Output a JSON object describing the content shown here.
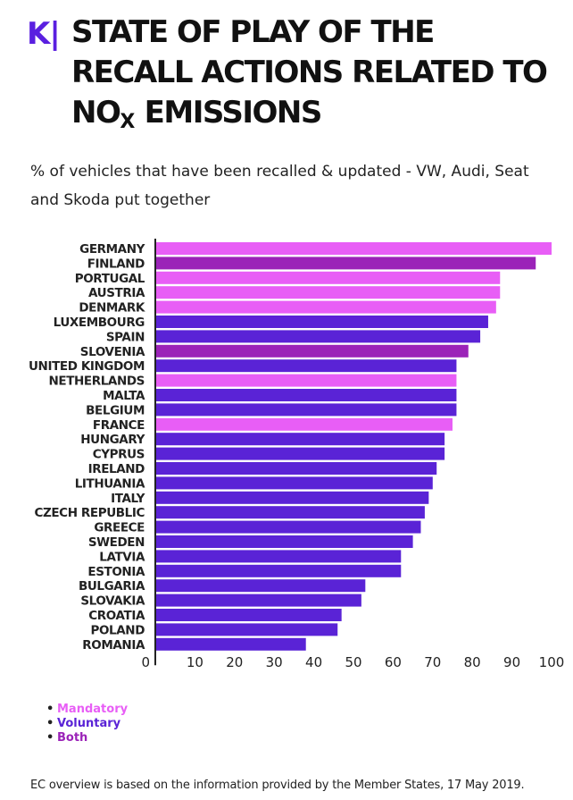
{
  "header": {
    "logo": "K|",
    "title_main": "STATE OF PLAY OF THE RECALL ACTIONS RELATED TO NO",
    "title_sub": "X",
    "title_end": " EMISSIONS",
    "subtitle": "% of vehicles that have been recalled & updated - VW, Audi, Seat and Skoda put together"
  },
  "colors": {
    "Mandatory": "#e85ef6",
    "Voluntary": "#5a23d6",
    "Both": "#9b23b8",
    "axis": "#222222"
  },
  "chart_data": {
    "type": "bar",
    "orientation": "horizontal",
    "title": "STATE OF PLAY OF THE RECALL ACTIONS RELATED TO NOX EMISSIONS",
    "xlabel": "",
    "ylabel": "",
    "xlim": [
      0,
      100
    ],
    "xticks": [
      0,
      10,
      20,
      30,
      40,
      50,
      60,
      70,
      80,
      90,
      100
    ],
    "grid": false,
    "legend_position": "bottom-left",
    "categories": [
      "GERMANY",
      "FINLAND",
      "PORTUGAL",
      "AUSTRIA",
      "DENMARK",
      "LUXEMBOURG",
      "SPAIN",
      "SLOVENIA",
      "UNITED KINGDOM",
      "NETHERLANDS",
      "MALTA",
      "BELGIUM",
      "FRANCE",
      "HUNGARY",
      "CYPRUS",
      "IRELAND",
      "LITHUANIA",
      "ITALY",
      "CZECH REPUBLIC",
      "GREECE",
      "SWEDEN",
      "LATVIA",
      "ESTONIA",
      "BULGARIA",
      "SLOVAKIA",
      "CROATIA",
      "POLAND",
      "ROMANIA"
    ],
    "values": [
      100,
      96,
      87,
      87,
      86,
      84,
      82,
      79,
      76,
      76,
      76,
      76,
      75,
      73,
      73,
      71,
      70,
      69,
      68,
      67,
      65,
      62,
      62,
      53,
      52,
      47,
      46,
      38
    ],
    "recall_type": [
      "Mandatory",
      "Both",
      "Mandatory",
      "Mandatory",
      "Mandatory",
      "Voluntary",
      "Voluntary",
      "Both",
      "Voluntary",
      "Mandatory",
      "Voluntary",
      "Voluntary",
      "Mandatory",
      "Voluntary",
      "Voluntary",
      "Voluntary",
      "Voluntary",
      "Voluntary",
      "Voluntary",
      "Voluntary",
      "Voluntary",
      "Voluntary",
      "Voluntary",
      "Voluntary",
      "Voluntary",
      "Voluntary",
      "Voluntary",
      "Voluntary"
    ],
    "legend": [
      "Mandatory",
      "Voluntary",
      "Both"
    ]
  },
  "footer": "EC overview is based on the information provided by the Member States, 17 May 2019."
}
